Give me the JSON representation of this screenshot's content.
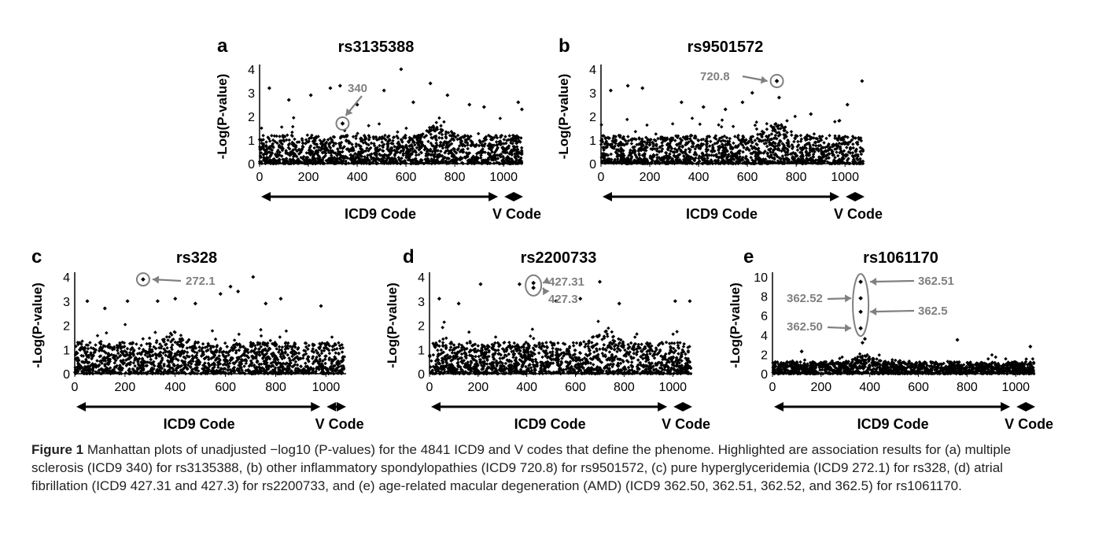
{
  "chart_data": [
    {
      "type": "scatter",
      "panel": "a",
      "title": "rs3135388",
      "ylabel": "-Log(P-value)",
      "xlim": [
        0,
        1080
      ],
      "ylim": [
        0,
        4
      ],
      "yticks": [
        0,
        1,
        2,
        3,
        4
      ],
      "xticks": [
        0,
        200,
        400,
        600,
        800,
        1000
      ],
      "noise": {
        "seed": 11,
        "baseline": 1.2,
        "peak_x": 720,
        "peak_extra": 0.6
      },
      "outliers": [
        [
          40,
          3.2
        ],
        [
          120,
          2.7
        ],
        [
          210,
          2.9
        ],
        [
          290,
          3.2
        ],
        [
          330,
          3.3
        ],
        [
          400,
          2.5
        ],
        [
          510,
          3.1
        ],
        [
          580,
          4.0
        ],
        [
          630,
          2.6
        ],
        [
          700,
          3.4
        ],
        [
          770,
          2.9
        ],
        [
          860,
          2.5
        ],
        [
          920,
          2.4
        ],
        [
          1060,
          2.6
        ],
        [
          1075,
          2.3
        ]
      ],
      "highlights": [
        {
          "x": 340,
          "y": 1.7
        }
      ],
      "annotations": [
        {
          "text": "340",
          "target_x": 340,
          "target_y": 1.7
        }
      ],
      "sections": [
        {
          "label": "ICD9 Code",
          "from": 0,
          "to": 990
        },
        {
          "label": "V Code",
          "from": 990,
          "to": 1080
        }
      ]
    },
    {
      "type": "scatter",
      "panel": "b",
      "title": "rs9501572",
      "ylabel": "-Log(P-value)",
      "xlim": [
        0,
        1080
      ],
      "ylim": [
        0,
        4
      ],
      "yticks": [
        0,
        1,
        2,
        3,
        4
      ],
      "xticks": [
        0,
        200,
        400,
        600,
        800,
        1000
      ],
      "noise": {
        "seed": 23,
        "baseline": 1.2,
        "peak_x": 720,
        "peak_extra": 0.6
      },
      "outliers": [
        [
          40,
          3.1
        ],
        [
          110,
          3.3
        ],
        [
          170,
          3.2
        ],
        [
          330,
          2.6
        ],
        [
          420,
          2.4
        ],
        [
          510,
          2.3
        ],
        [
          580,
          2.6
        ],
        [
          620,
          3.0
        ],
        [
          730,
          2.8
        ],
        [
          860,
          2.1
        ],
        [
          1010,
          2.5
        ],
        [
          1070,
          3.5
        ]
      ],
      "highlights": [
        {
          "x": 720.8,
          "y": 3.5
        }
      ],
      "annotations": [
        {
          "text": "720.8",
          "target_x": 720.8,
          "target_y": 3.5
        }
      ],
      "sections": [
        {
          "label": "ICD9 Code",
          "from": 0,
          "to": 990
        },
        {
          "label": "V Code",
          "from": 990,
          "to": 1080
        }
      ]
    },
    {
      "type": "scatter",
      "panel": "c",
      "title": "rs328",
      "ylabel": "-Log(P-value)",
      "xlim": [
        0,
        1080
      ],
      "ylim": [
        0,
        4
      ],
      "yticks": [
        0,
        1,
        2,
        3,
        4
      ],
      "xticks": [
        0,
        200,
        400,
        600,
        800,
        1000
      ],
      "noise": {
        "seed": 37,
        "baseline": 1.3,
        "peak_x": 400,
        "peak_extra": 0.5
      },
      "outliers": [
        [
          50,
          3.0
        ],
        [
          120,
          2.7
        ],
        [
          210,
          3.0
        ],
        [
          330,
          3.0
        ],
        [
          400,
          3.1
        ],
        [
          480,
          2.9
        ],
        [
          580,
          3.3
        ],
        [
          620,
          3.6
        ],
        [
          650,
          3.4
        ],
        [
          710,
          4.0
        ],
        [
          760,
          2.9
        ],
        [
          820,
          3.1
        ],
        [
          980,
          2.8
        ]
      ],
      "highlights": [
        {
          "x": 272.1,
          "y": 3.9
        }
      ],
      "annotations": [
        {
          "text": "272.1",
          "target_x": 272.1,
          "target_y": 3.9
        }
      ],
      "sections": [
        {
          "label": "ICD9 Code",
          "from": 0,
          "to": 990
        },
        {
          "label": "V Code",
          "from": 990,
          "to": 1080
        }
      ]
    },
    {
      "type": "scatter",
      "panel": "d",
      "title": "rs2200733",
      "ylabel": "-Log(P-value)",
      "xlim": [
        0,
        1080
      ],
      "ylim": [
        0,
        4
      ],
      "yticks": [
        0,
        1,
        2,
        3,
        4
      ],
      "xticks": [
        0,
        200,
        400,
        600,
        800,
        1000
      ],
      "noise": {
        "seed": 53,
        "baseline": 1.3,
        "peak_x": 720,
        "peak_extra": 0.5
      },
      "outliers": [
        [
          40,
          3.1
        ],
        [
          120,
          2.9
        ],
        [
          210,
          3.7
        ],
        [
          370,
          3.7
        ],
        [
          520,
          3.0
        ],
        [
          620,
          3.1
        ],
        [
          700,
          3.8
        ],
        [
          780,
          2.9
        ],
        [
          1010,
          3.0
        ],
        [
          1070,
          3.0
        ]
      ],
      "highlights": [
        {
          "x": 427.31,
          "y": 3.75
        },
        {
          "x": 427.3,
          "y": 3.55
        }
      ],
      "annotations": [
        {
          "text": "427.31",
          "target_x": 427.31,
          "target_y": 3.75
        },
        {
          "text": "427.3",
          "target_x": 427.3,
          "target_y": 3.55
        }
      ],
      "sections": [
        {
          "label": "ICD9 Code",
          "from": 0,
          "to": 990
        },
        {
          "label": "V Code",
          "from": 990,
          "to": 1080
        }
      ]
    },
    {
      "type": "scatter",
      "panel": "e",
      "title": "rs1061170",
      "ylabel": "-Log(P-value)",
      "xlim": [
        0,
        1080
      ],
      "ylim": [
        0,
        10
      ],
      "yticks": [
        0,
        2,
        4,
        6,
        8,
        10
      ],
      "xticks": [
        0,
        200,
        400,
        600,
        800,
        1000
      ],
      "noise": {
        "seed": 71,
        "baseline": 1.3,
        "peak_x": 380,
        "peak_extra": 0.8
      },
      "outliers": [
        [
          120,
          2.3
        ],
        [
          370,
          3.2
        ],
        [
          380,
          3.6
        ],
        [
          760,
          3.5
        ],
        [
          1060,
          2.8
        ]
      ],
      "highlights": [
        {
          "x": 362.51,
          "y": 9.5
        },
        {
          "x": 362.52,
          "y": 7.8
        },
        {
          "x": 362.5,
          "y": 6.4
        },
        {
          "x": 362.5,
          "y": 4.7
        }
      ],
      "annotations": [
        {
          "text": "362.51",
          "target_x": 362.51,
          "target_y": 9.5
        },
        {
          "text": "362.52",
          "target_x": 362.52,
          "target_y": 7.8
        },
        {
          "text": "362.5",
          "target_x": 362.5,
          "target_y": 6.4
        },
        {
          "text": "362.50",
          "target_x": 362.5,
          "target_y": 4.7
        }
      ],
      "sections": [
        {
          "label": "ICD9 Code",
          "from": 0,
          "to": 990
        },
        {
          "label": "V Code",
          "from": 990,
          "to": 1080
        }
      ]
    }
  ],
  "caption": {
    "label": "Figure 1",
    "text": " Manhattan plots of unadjusted −log10 (P-values) for the 4841 ICD9 and V codes that define the phenome. Highlighted are association results for (a) multiple sclerosis (ICD9 340) for rs3135388, (b) other inflammatory spondylopathies (ICD9 720.8) for rs9501572, (c) pure hyperglyceridemia (ICD9 272.1) for rs328, (d) atrial fibrillation (ICD9 427.31 and 427.3) for rs2200733, and (e) age-related macular degeneration (AMD) (ICD9 362.50, 362.51, 362.52, and 362.5) for rs1061170."
  }
}
